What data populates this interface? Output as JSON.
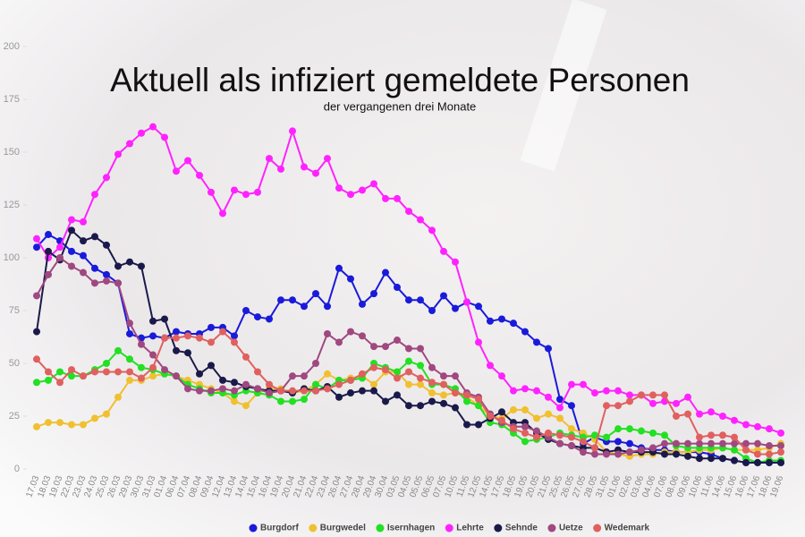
{
  "chart_data": {
    "type": "line",
    "title": "Aktuell als infiziert gemeldete Personen",
    "subtitle": "der vergangenen drei Monate",
    "categories": [
      "17.03",
      "18.03",
      "19.03",
      "22.03",
      "23.03",
      "24.03",
      "25.03",
      "26.03",
      "29.03",
      "30.03",
      "31.03",
      "01.04",
      "06.04",
      "07.04",
      "08.04",
      "09.04",
      "12.04",
      "13.04",
      "14.04",
      "15.04",
      "16.04",
      "19.04",
      "20.04",
      "21.04",
      "22.04",
      "23.04",
      "26.04",
      "27.04",
      "28.04",
      "29.04",
      "30.04",
      "03.05",
      "04.05",
      "05.05",
      "06.05",
      "07.05",
      "10.05",
      "11.05",
      "12.05",
      "14.05",
      "17.05",
      "18.05",
      "19.05",
      "20.05",
      "21.05",
      "25.05",
      "26.05",
      "27.05",
      "28.05",
      "31.05",
      "01.06",
      "02.06",
      "03.06",
      "04.06",
      "07.06",
      "08.06",
      "09.06",
      "10.06",
      "11.06",
      "14.06",
      "15.06",
      "16.06",
      "17.06",
      "18.06",
      "19.06"
    ],
    "ylim": [
      0,
      200
    ],
    "yticks": [
      0,
      25,
      50,
      75,
      100,
      125,
      150,
      175,
      200
    ],
    "grid": false,
    "legend": "bottom",
    "series": [
      {
        "name": "Burgdorf",
        "color": "#1a1adb",
        "values": [
          105,
          111,
          108,
          103,
          101,
          95,
          92,
          88,
          64,
          62,
          63,
          62,
          65,
          64,
          64,
          67,
          67,
          63,
          75,
          72,
          71,
          80,
          80,
          77,
          83,
          77,
          95,
          90,
          78,
          83,
          93,
          86,
          80,
          80,
          75,
          82,
          76,
          79,
          77,
          70,
          71,
          69,
          65,
          60,
          57,
          33,
          30,
          12,
          15,
          13,
          13,
          12,
          10,
          9,
          9,
          8,
          8,
          8,
          7,
          5,
          4,
          3,
          3,
          3,
          3
        ]
      },
      {
        "name": "Burgwedel",
        "color": "#f0c030",
        "values": [
          20,
          22,
          22,
          21,
          21,
          24,
          26,
          34,
          42,
          42,
          44,
          45,
          44,
          42,
          40,
          38,
          36,
          32,
          30,
          36,
          38,
          38,
          36,
          37,
          40,
          45,
          42,
          43,
          44,
          40,
          46,
          46,
          40,
          40,
          36,
          35,
          36,
          34,
          30,
          25,
          24,
          28,
          28,
          24,
          26,
          24,
          19,
          17,
          14,
          8,
          7,
          6,
          7,
          7,
          8,
          8,
          8,
          9,
          9,
          10,
          9,
          9,
          9,
          10,
          12
        ]
      },
      {
        "name": "Isernhagen",
        "color": "#22e022",
        "values": [
          41,
          42,
          46,
          44,
          44,
          47,
          50,
          56,
          52,
          48,
          47,
          45,
          44,
          40,
          38,
          36,
          36,
          35,
          37,
          36,
          35,
          32,
          32,
          33,
          40,
          38,
          42,
          42,
          43,
          50,
          48,
          46,
          51,
          49,
          40,
          40,
          38,
          32,
          30,
          22,
          21,
          17,
          13,
          14,
          15,
          17,
          16,
          15,
          16,
          15,
          19,
          19,
          18,
          17,
          16,
          11,
          10,
          10,
          10,
          10,
          9,
          5,
          3,
          4,
          4
        ]
      },
      {
        "name": "Lehrte",
        "color": "#ff22ff",
        "values": [
          109,
          100,
          105,
          118,
          117,
          130,
          138,
          149,
          154,
          159,
          162,
          157,
          141,
          146,
          139,
          131,
          121,
          132,
          130,
          131,
          147,
          142,
          160,
          143,
          140,
          147,
          133,
          130,
          132,
          135,
          128,
          128,
          122,
          118,
          113,
          103,
          98,
          79,
          60,
          49,
          44,
          37,
          38,
          37,
          34,
          29,
          40,
          40,
          36,
          37,
          37,
          35,
          35,
          31,
          32,
          31,
          34,
          26,
          27,
          25,
          23,
          21,
          20,
          19,
          17
        ]
      },
      {
        "name": "Sehnde",
        "color": "#1a1a4a",
        "values": [
          65,
          103,
          99,
          113,
          108,
          110,
          106,
          96,
          98,
          96,
          70,
          71,
          56,
          55,
          45,
          49,
          42,
          41,
          39,
          38,
          37,
          37,
          36,
          38,
          37,
          39,
          34,
          36,
          37,
          37,
          32,
          35,
          30,
          30,
          32,
          31,
          29,
          21,
          21,
          24,
          27,
          22,
          22,
          17,
          14,
          12,
          11,
          10,
          10,
          8,
          9,
          8,
          8,
          8,
          7,
          7,
          6,
          5,
          5,
          5,
          4,
          3,
          3,
          3,
          3
        ]
      },
      {
        "name": "Uetze",
        "color": "#a04880",
        "values": [
          82,
          92,
          100,
          96,
          93,
          88,
          89,
          88,
          69,
          59,
          54,
          47,
          44,
          38,
          37,
          37,
          38,
          37,
          40,
          38,
          36,
          37,
          44,
          44,
          50,
          64,
          60,
          65,
          63,
          58,
          58,
          61,
          57,
          57,
          48,
          44,
          44,
          36,
          34,
          26,
          22,
          20,
          20,
          18,
          15,
          12,
          11,
          8,
          7,
          7,
          7,
          8,
          9,
          10,
          12,
          12,
          12,
          12,
          12,
          12,
          12,
          12,
          12,
          11,
          11
        ]
      },
      {
        "name": "Wedemark",
        "color": "#e06060",
        "values": [
          52,
          46,
          41,
          47,
          44,
          46,
          46,
          46,
          46,
          43,
          48,
          62,
          62,
          63,
          62,
          60,
          65,
          60,
          53,
          46,
          40,
          37,
          37,
          37,
          37,
          38,
          40,
          42,
          45,
          48,
          47,
          43,
          46,
          43,
          41,
          40,
          36,
          35,
          33,
          25,
          23,
          19,
          17,
          15,
          17,
          16,
          15,
          13,
          10,
          30,
          30,
          32,
          35,
          35,
          35,
          25,
          26,
          15,
          16,
          16,
          15,
          9,
          7,
          7,
          8
        ]
      }
    ]
  }
}
